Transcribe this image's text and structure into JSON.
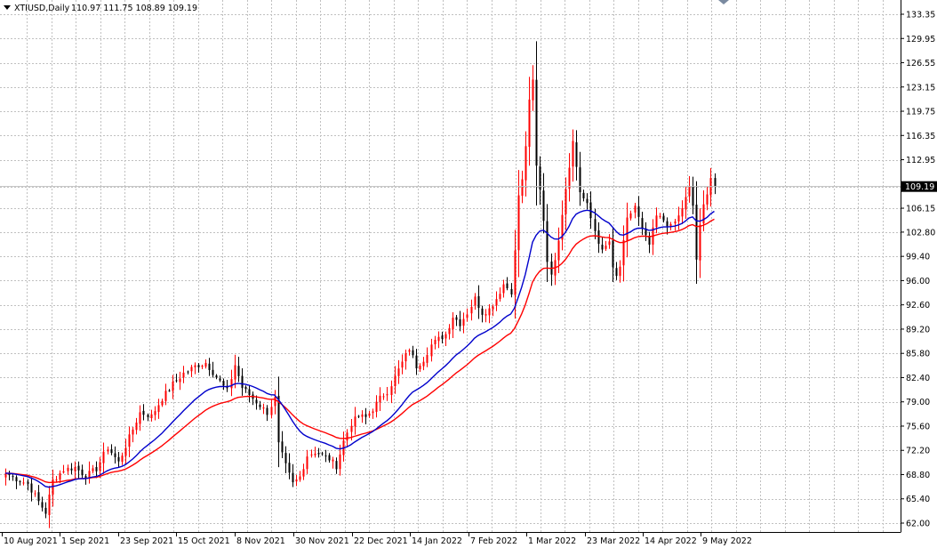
{
  "header": {
    "symbol": "XTIUSD,Daily",
    "ohlc": "110.97 111.75 108.89 109.19"
  },
  "colors": {
    "background": "#ffffff",
    "grid": "#c0c0c0",
    "bull": "#ff0000",
    "bear": "#000000",
    "fast_ma": "#0000cc",
    "slow_ma": "#ff0000",
    "price_tag_bg": "#000000",
    "price_tag_text": "#ffffff"
  },
  "chart_data": {
    "type": "candlestick",
    "price_scale": {
      "min": 62.0,
      "max": 133.35,
      "ticks": [
        "133.35",
        "129.95",
        "126.55",
        "123.15",
        "119.75",
        "116.35",
        "112.95",
        "109.19",
        "106.15",
        "102.80",
        "99.40",
        "96.00",
        "92.60",
        "89.20",
        "85.80",
        "82.40",
        "79.00",
        "75.60",
        "72.20",
        "68.80",
        "65.40",
        "62.00"
      ]
    },
    "time_labels": [
      "10 Aug 2021",
      "1 Sep 2021",
      "23 Sep 2021",
      "15 Oct 2021",
      "8 Nov 2021",
      "30 Nov 2021",
      "22 Dec 2021",
      "14 Jan 2022",
      "7 Feb 2022",
      "1 Mar 2022",
      "23 Mar 2022",
      "14 Apr 2022",
      "9 May 2022"
    ],
    "current_price": "109.19",
    "close_anchors": [
      [
        0,
        69.0
      ],
      [
        3,
        68.2
      ],
      [
        6,
        67.5
      ],
      [
        9,
        65.0
      ],
      [
        11,
        63.5
      ],
      [
        13,
        68.0
      ],
      [
        16,
        69.5
      ],
      [
        19,
        69.8
      ],
      [
        22,
        68.6
      ],
      [
        25,
        69.6
      ],
      [
        28,
        72.6
      ],
      [
        31,
        70.5
      ],
      [
        34,
        74.0
      ],
      [
        37,
        77.5
      ],
      [
        40,
        77.0
      ],
      [
        43,
        79.5
      ],
      [
        46,
        81.5
      ],
      [
        49,
        83.0
      ],
      [
        52,
        84.0
      ],
      [
        55,
        84.5
      ],
      [
        58,
        82.5
      ],
      [
        61,
        80.5
      ],
      [
        63,
        84.2
      ],
      [
        65,
        81.0
      ],
      [
        67,
        80.0
      ],
      [
        70,
        78.5
      ],
      [
        72,
        77.5
      ],
      [
        74,
        79.5
      ],
      [
        75,
        73.0
      ],
      [
        77,
        70.0
      ],
      [
        79,
        67.5
      ],
      [
        81,
        68.5
      ],
      [
        83,
        71.5
      ],
      [
        85,
        72.0
      ],
      [
        87,
        71.5
      ],
      [
        89,
        71.0
      ],
      [
        91,
        70.0
      ],
      [
        93,
        73.5
      ],
      [
        95,
        76.0
      ],
      [
        97,
        77.0
      ],
      [
        99,
        76.8
      ],
      [
        101,
        78.0
      ],
      [
        103,
        79.5
      ],
      [
        105,
        80.5
      ],
      [
        107,
        82.5
      ],
      [
        109,
        84.5
      ],
      [
        111,
        86.5
      ],
      [
        113,
        84.0
      ],
      [
        115,
        85.0
      ],
      [
        117,
        87.0
      ],
      [
        119,
        87.8
      ],
      [
        121,
        88.5
      ],
      [
        123,
        91.0
      ],
      [
        125,
        90.0
      ],
      [
        127,
        91.5
      ],
      [
        129,
        93.5
      ],
      [
        131,
        91.5
      ],
      [
        133,
        92.0
      ],
      [
        135,
        93.5
      ],
      [
        137,
        95.5
      ],
      [
        139,
        94.5
      ],
      [
        140,
        100.0
      ],
      [
        141,
        108.0
      ],
      [
        142,
        110.0
      ],
      [
        143,
        115.0
      ],
      [
        144,
        121.0
      ],
      [
        145,
        124.0
      ],
      [
        146,
        112.0
      ],
      [
        147,
        109.0
      ],
      [
        148,
        104.5
      ],
      [
        149,
        99.0
      ],
      [
        150,
        96.5
      ],
      [
        152,
        102.0
      ],
      [
        154,
        109.0
      ],
      [
        156,
        115.5
      ],
      [
        158,
        108.5
      ],
      [
        160,
        106.5
      ],
      [
        162,
        103.0
      ],
      [
        164,
        100.0
      ],
      [
        166,
        101.5
      ],
      [
        167,
        97.5
      ],
      [
        168,
        96.5
      ],
      [
        169,
        98.0
      ],
      [
        171,
        104.5
      ],
      [
        173,
        106.5
      ],
      [
        175,
        103.0
      ],
      [
        177,
        101.0
      ],
      [
        179,
        105.0
      ],
      [
        181,
        104.5
      ],
      [
        183,
        103.5
      ],
      [
        185,
        105.0
      ],
      [
        187,
        107.5
      ],
      [
        188,
        109.0
      ],
      [
        189,
        106.5
      ],
      [
        190,
        99.0
      ],
      [
        191,
        103.5
      ],
      [
        192,
        106.5
      ],
      [
        193,
        108.5
      ],
      [
        194,
        110.5
      ],
      [
        195,
        109.19
      ]
    ]
  }
}
